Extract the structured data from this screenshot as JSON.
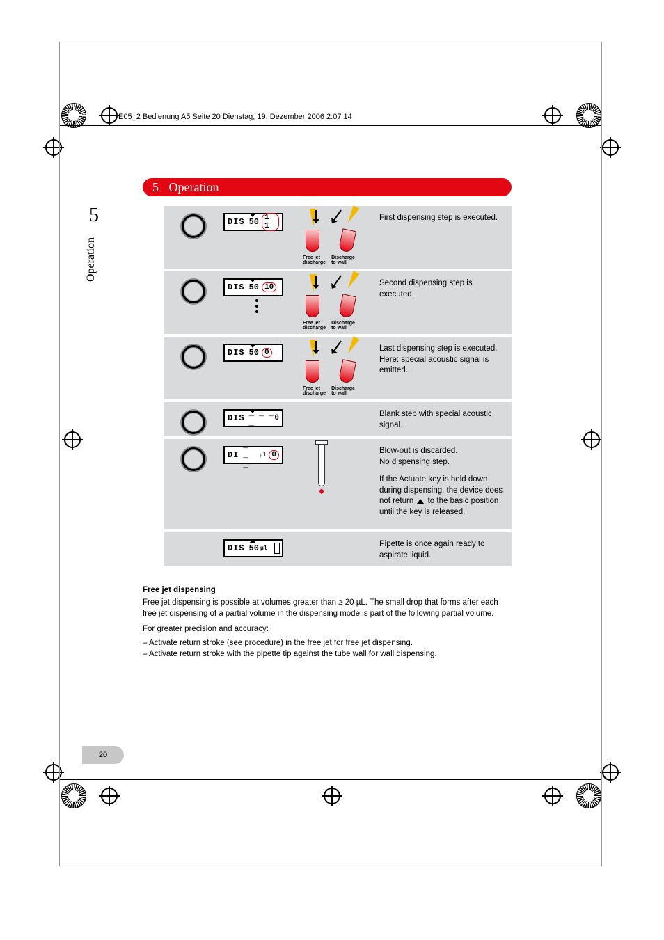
{
  "header_line": "E05_2 Bedienung A5  Seite 20  Dienstag, 19. Dezember 2006  2:07 14",
  "section": {
    "number": "5",
    "title": "Operation"
  },
  "chapter_num": "5",
  "side_label": "Operation",
  "page_number": "20",
  "colors": {
    "banner": "#e30613",
    "row_bg": "#d9dadb",
    "circle_accent": "#e30613"
  },
  "rows": [
    {
      "lcd": {
        "mode": "DIS",
        "val": "50",
        "cnt": "1 1",
        "circled": true,
        "arrow": "down"
      },
      "img_labels": [
        "Free jet\ndischarge",
        "Discharge\nto wall"
      ],
      "show_tubes": true,
      "text": "First dispensing step is executed."
    },
    {
      "lcd": {
        "mode": "DIS",
        "val": "50",
        "cnt": "10",
        "circled": true,
        "arrow": "down"
      },
      "dots": true,
      "img_labels": [
        "Free jet\ndischarge",
        "Discharge\nto wall"
      ],
      "show_tubes": true,
      "text": "Second dispensing step is executed."
    },
    {
      "lcd": {
        "mode": "DIS",
        "val": "50",
        "cnt": "0",
        "circled": true,
        "arrow": "down"
      },
      "img_labels": [
        "Free jet\ndischarge",
        "Discharge\nto wall"
      ],
      "show_tubes": true,
      "text": "Last dispensing step is executed.\nHere: special acoustic signal is emitted."
    },
    {
      "lcd": {
        "mode": "DIS",
        "val": "_ _ _ _",
        "cnt": "0",
        "circled": false,
        "arrow": "down"
      },
      "show_tubes": false,
      "compact": true,
      "text": "Blank step with special acoustic signal."
    },
    {
      "lcd": {
        "mode": "DI",
        "val": "_ _ _",
        "unit": "µl",
        "cnt": "0",
        "circled": true,
        "arrow": "none"
      },
      "show_syringe": true,
      "text": "Blow-out is discarded.\nNo dispensing step.",
      "text2": "If the Actuate key is held down during dispensing, the device does not return ▲ to the basic position until the key is released."
    },
    {
      "lcd": {
        "mode": "DIS",
        "val": "50",
        "unit": "µl",
        "cnt": " ",
        "piston": true,
        "arrow": "up"
      },
      "no_button": true,
      "compact": true,
      "text": "Pipette is once again ready to aspirate liquid."
    }
  ],
  "body": {
    "heading": "Free jet dispensing",
    "p1": "Free jet dispensing is possible at volumes greater than ≥ 20 µL. The small drop that forms after each free jet dispensing of a partial volume in the dispensing mode is part of the following partial volume.",
    "p2": "For greater precision and accuracy:",
    "li1": "Activate return stroke (see procedure) in the free jet for free jet dispensing.",
    "li2": "Activate return stroke with the pipette tip against the tube wall for wall dispensing."
  }
}
